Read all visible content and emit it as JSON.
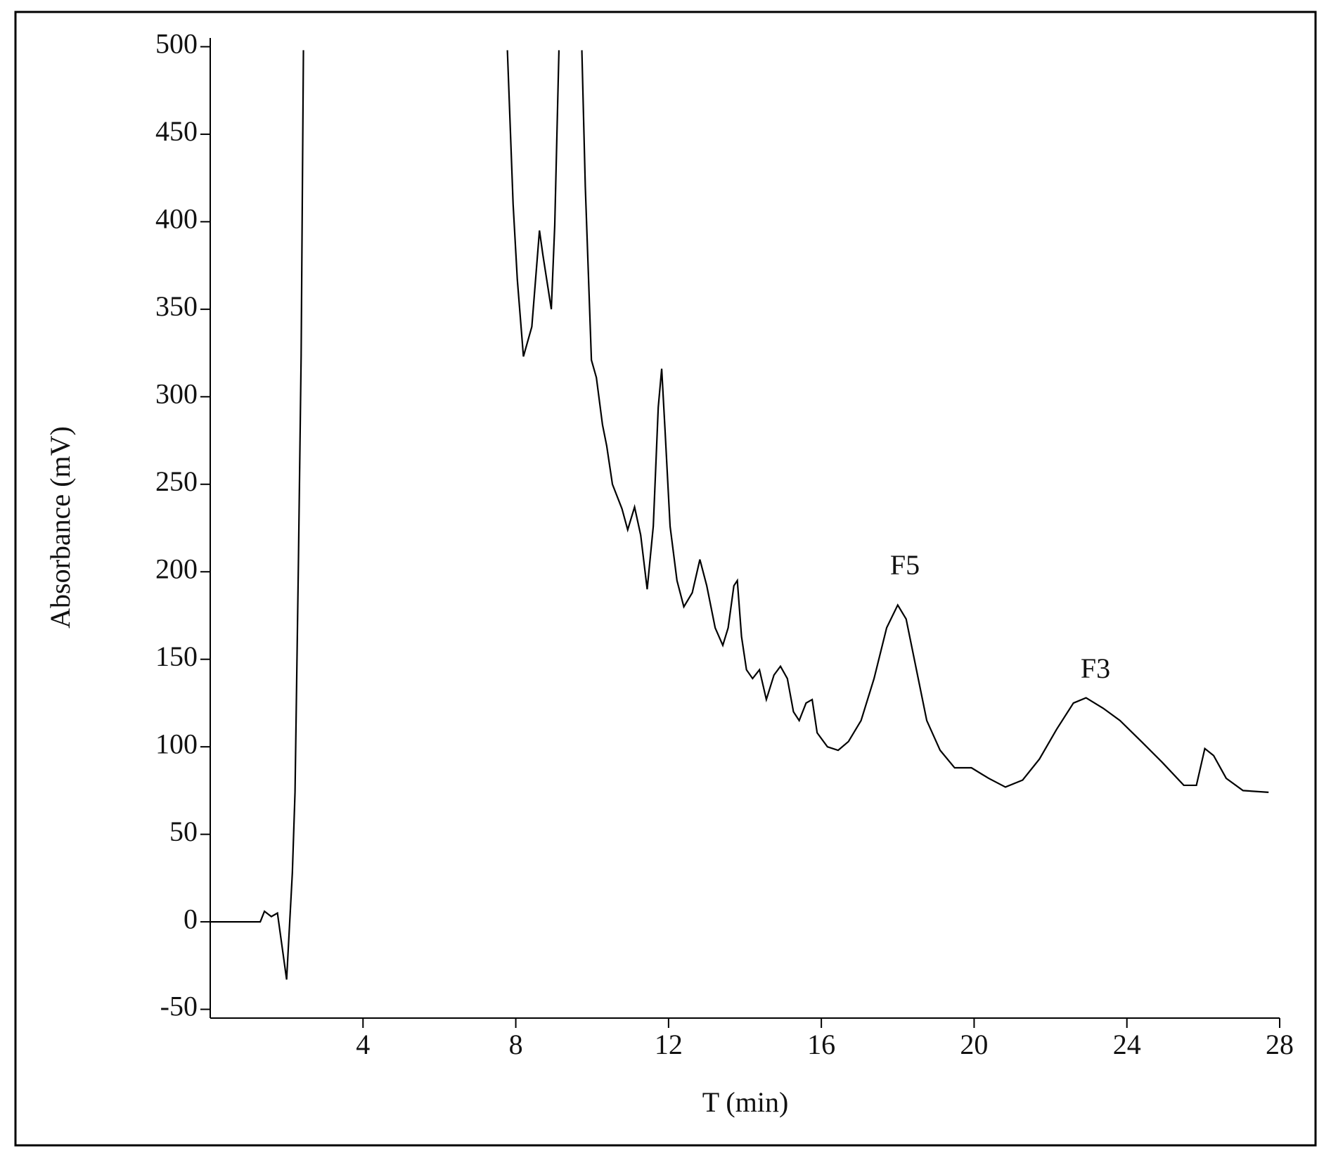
{
  "chart_data": {
    "type": "line",
    "xlabel": "T (min)",
    "ylabel": "Absorbance (mV)",
    "x": [
      0,
      1.31,
      1.42,
      1.6,
      1.76,
      2.0,
      2.15,
      2.22,
      2.31,
      2.38,
      2.44,
      2.44,
      7.78,
      7.93,
      8.04,
      8.2,
      8.42,
      8.62,
      8.71,
      8.93,
      9.02,
      9.13,
      9.13,
      9.73,
      9.82,
      9.98,
      10.11,
      10.27,
      10.38,
      10.53,
      10.78,
      10.93,
      11.11,
      11.27,
      11.44,
      11.6,
      11.73,
      11.82,
      11.91,
      12.04,
      12.22,
      12.4,
      12.62,
      12.82,
      13.0,
      13.22,
      13.42,
      13.56,
      13.71,
      13.8,
      13.91,
      14.04,
      14.2,
      14.38,
      14.56,
      14.76,
      14.93,
      15.11,
      15.27,
      15.42,
      15.6,
      15.76,
      15.89,
      16.16,
      16.44,
      16.71,
      17.04,
      17.38,
      17.71,
      18.0,
      18.22,
      18.49,
      18.76,
      19.11,
      19.49,
      19.93,
      20.38,
      20.82,
      21.27,
      21.71,
      22.16,
      22.6,
      22.93,
      23.38,
      23.82,
      24.38,
      24.93,
      25.49,
      25.82,
      26.04,
      26.27,
      26.6,
      27.04,
      27.71
    ],
    "series": [
      {
        "color": "#000000",
        "values": [
          0,
          0,
          6,
          3,
          5,
          -33,
          28,
          74,
          207,
          323,
          498,
          null,
          498,
          410,
          367,
          323,
          340,
          395,
          381,
          350,
          398,
          498,
          null,
          498,
          420,
          321,
          311,
          284,
          272,
          250,
          236,
          224,
          237,
          221,
          190,
          226,
          294,
          316,
          280,
          226,
          195,
          180,
          188,
          207,
          192,
          168,
          158,
          168,
          192,
          195,
          163,
          144,
          139,
          144,
          127,
          141,
          146,
          139,
          120,
          115,
          125,
          127,
          108,
          100,
          98,
          103,
          115,
          139,
          168,
          181,
          173,
          144,
          115,
          98,
          88,
          88,
          82,
          77,
          81,
          93,
          110,
          125,
          128,
          122,
          115,
          103,
          91,
          78,
          78,
          99,
          95,
          82,
          75,
          74
        ]
      }
    ],
    "annotations": [
      {
        "text": "F5"
      },
      {
        "text": "F3"
      }
    ],
    "xlim": [
      0,
      28
    ],
    "xticks": [
      4,
      8,
      12,
      16,
      20,
      24,
      28
    ],
    "ylim": [
      -55,
      505
    ],
    "yticks": [
      -50,
      0,
      50,
      100,
      150,
      200,
      250,
      300,
      350,
      400,
      450,
      500
    ],
    "grid": false
  }
}
